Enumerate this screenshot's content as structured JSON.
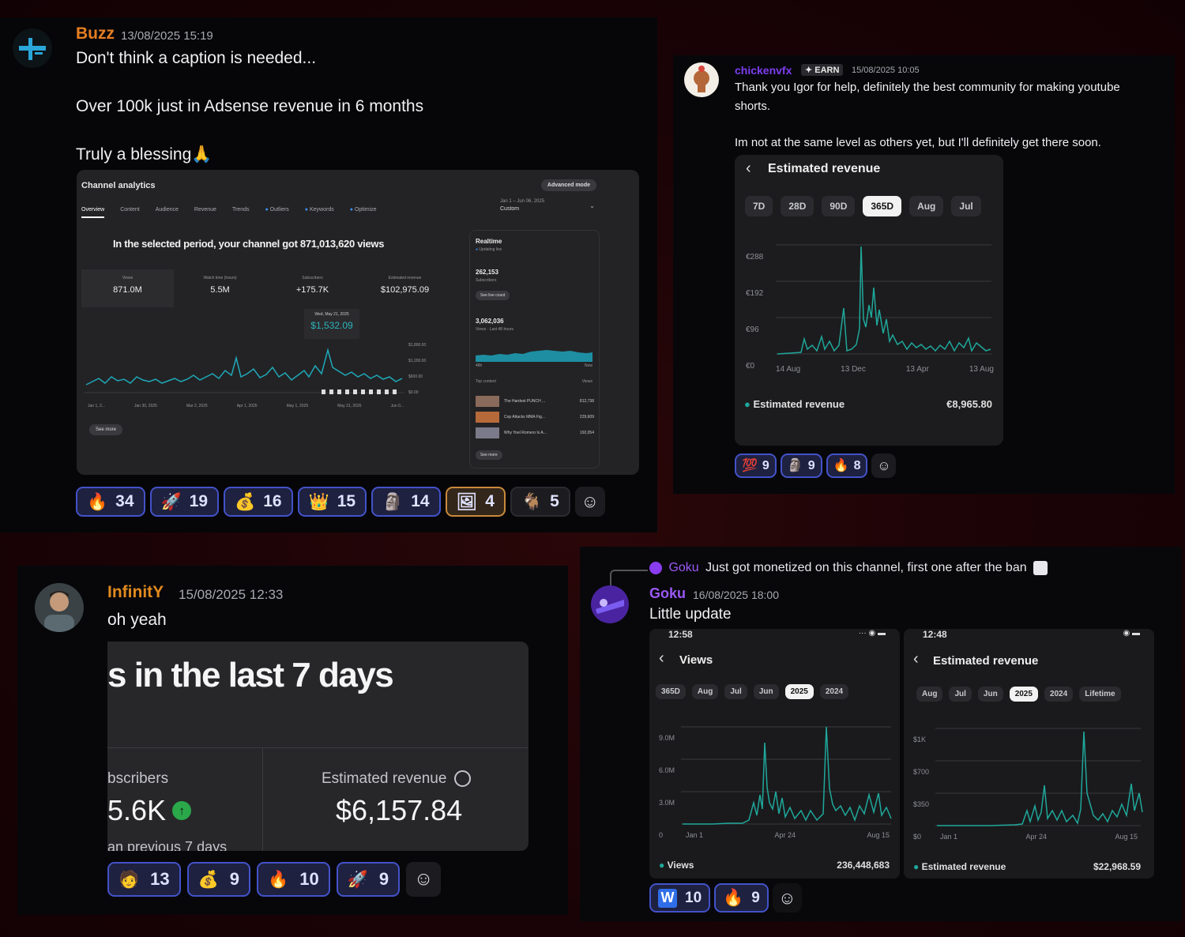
{
  "colors": {
    "accent_blue": "#4352c9",
    "chart_teal": "#1fa89b",
    "buzz": "#e67e22",
    "chicken": "#7d3cf0",
    "goku": "#9b59f5",
    "infinity": "#e08a1e"
  },
  "post1": {
    "username": "Buzz",
    "timestamp": "13/08/2025 15:19",
    "lines": [
      "Don't think a caption is needed...",
      "Over 100k just in Adsense revenue in 6 months",
      "Truly a blessing"
    ],
    "blessing_emoji": "🙏",
    "screenshot": {
      "title": "Channel analytics",
      "advanced_label": "Advanced mode",
      "tabs": [
        "Overview",
        "Content",
        "Audience",
        "Revenue",
        "Trends",
        "Outliers",
        "Keywords",
        "Optimize"
      ],
      "date_range": "Jan 1 – Jun 06, 2025",
      "date_range_label": "Custom",
      "headline": "In the selected period, your channel got 871,013,620 views",
      "stats": [
        {
          "label": "Views",
          "value": "871.0M"
        },
        {
          "label": "Watch time (hours)",
          "value": "5.5M"
        },
        {
          "label": "Subscribers",
          "value": "+175.7K"
        },
        {
          "label": "Estimated revenue",
          "value": "$102,975.09"
        }
      ],
      "tooltip_date": "Wed, May 21, 2025",
      "tooltip_value": "$1,532.09",
      "x_ticks": [
        "Jan 1, 2...",
        "Jan 30, 2025",
        "Mar 2, 2025",
        "Apr 1, 2025",
        "May 1, 2025",
        "May 31, 2025",
        "Jun 0..."
      ],
      "y_ticks": [
        "$1,800.00",
        "$1,200.00",
        "$600.00",
        "$0.00"
      ],
      "see_more": "See more",
      "realtime": {
        "title": "Realtime",
        "sub": "Updating live",
        "subs_value": "262,153",
        "subs_label": "Subscribers",
        "subs_button": "See live count",
        "views_value": "3,062,036",
        "views_label": "Views · Last 48 hours",
        "left_tick": "48h",
        "right_tick": "Now",
        "top_content": "Top content",
        "views_col": "Views",
        "items": [
          {
            "title": "The Hardest PUNCH ...",
            "views": "812,738"
          },
          {
            "title": "Cop Attacks MMA Fig...",
            "views": "229,609"
          },
          {
            "title": "Why Yoel Romero Is A...",
            "views": "192,054"
          }
        ],
        "see_more": "See more"
      }
    },
    "reactions": [
      {
        "emoji": "🔥",
        "count": "34"
      },
      {
        "emoji": "🚀",
        "count": "19"
      },
      {
        "emoji": "💰",
        "count": "16"
      },
      {
        "emoji": "👑",
        "count": "15"
      },
      {
        "emoji": "🗿",
        "count": "14"
      },
      {
        "emoji": "🖼",
        "count": "4"
      },
      {
        "emoji": "🐐",
        "count": "5"
      }
    ]
  },
  "post2": {
    "username": "chickenvfx",
    "badge": "EARN",
    "timestamp": "15/08/2025 10:05",
    "line1": "Thank you Igor for help, definitely the best community for making youtube",
    "line1b": "shorts.",
    "line2": "Im not at the same level as others yet, but I'll definitely get there soon.",
    "screenshot": {
      "title": "Estimated revenue",
      "pills": [
        "7D",
        "28D",
        "90D",
        "365D",
        "Aug",
        "Jul"
      ],
      "selected_pill": "365D",
      "y_ticks": [
        "€288",
        "€192",
        "€96",
        "€0"
      ],
      "x_ticks": [
        "14 Aug",
        "13 Dec",
        "13 Apr",
        "13 Aug"
      ],
      "legend": "Estimated revenue",
      "total": "€8,965.80"
    },
    "reactions": [
      {
        "emoji": "💯",
        "count": "9"
      },
      {
        "emoji": "🗿",
        "count": "9"
      },
      {
        "emoji": "🔥",
        "count": "8"
      }
    ]
  },
  "post3": {
    "username": "InfinitY",
    "timestamp": "15/08/2025 12:33",
    "line": "oh yeah",
    "screenshot": {
      "heading": "s in the last 7 days",
      "left_label": "bscribers",
      "left_value": "5.6K",
      "left_sub": "an previous 7 days",
      "right_label": "Estimated revenue",
      "right_value": "$6,157.84"
    },
    "reactions": [
      {
        "emoji": "🧑",
        "count": "13"
      },
      {
        "emoji": "💰",
        "count": "9"
      },
      {
        "emoji": "🔥",
        "count": "10"
      },
      {
        "emoji": "🚀",
        "count": "9"
      }
    ]
  },
  "post4": {
    "reply_user": "Goku",
    "reply_text": "Just got monetized on this channel, first one after the ban",
    "username": "Goku",
    "timestamp": "16/08/2025 18:00",
    "line": "Little update",
    "left": {
      "time": "12:58",
      "title": "Views",
      "pills": [
        "365D",
        "Aug",
        "Jul",
        "Jun",
        "2025",
        "2024"
      ],
      "selected_pill": "2025",
      "y_ticks": [
        "9.0M",
        "6.0M",
        "3.0M",
        "0"
      ],
      "x_ticks": [
        "Jan 1",
        "Apr 24",
        "Aug 15"
      ],
      "legend": "Views",
      "total": "236,448,683"
    },
    "right": {
      "time": "12:48",
      "title": "Estimated revenue",
      "pills": [
        "Aug",
        "Jul",
        "Jun",
        "2025",
        "2024",
        "Lifetime"
      ],
      "selected_pill": "2025",
      "y_ticks": [
        "$1K",
        "$700",
        "$350",
        "$0"
      ],
      "x_ticks": [
        "Jan 1",
        "Apr 24",
        "Aug 15"
      ],
      "legend": "Estimated revenue",
      "total": "$22,968.59"
    },
    "reactions": [
      {
        "emoji": "W",
        "count": "10"
      },
      {
        "emoji": "🔥",
        "count": "9"
      }
    ]
  }
}
